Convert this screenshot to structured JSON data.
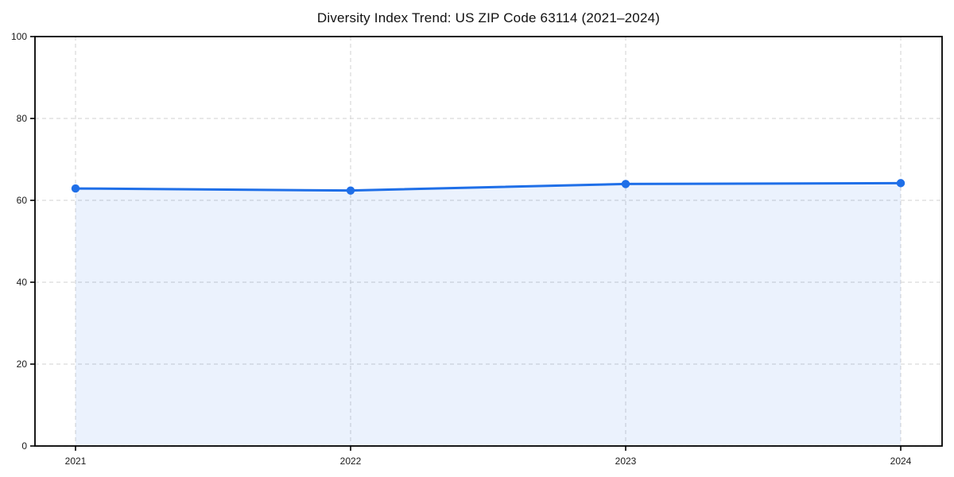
{
  "chart_data": {
    "type": "area",
    "title": "Diversity Index Trend: US ZIP Code 63114 (2021–2024)",
    "categories": [
      "2021",
      "2022",
      "2023",
      "2024"
    ],
    "series": [
      {
        "name": "Diversity Index",
        "values": [
          62.9,
          62.4,
          64.0,
          64.2
        ]
      }
    ],
    "xlabel": "",
    "ylabel": "",
    "ylim": [
      0,
      100
    ],
    "yticks": [
      0,
      20,
      40,
      60,
      80,
      100
    ],
    "grid": true,
    "grid_style": "dashed",
    "legend_position": "none",
    "colors": {
      "line": "#1f6fe8",
      "marker": "#1f6fe8",
      "fill": "#1f6fe8",
      "fill_opacity": 0.09,
      "grid": "#d9d9d9",
      "axis": "#000000",
      "tick_label": "#1a1a1a",
      "background": "#ffffff"
    }
  }
}
